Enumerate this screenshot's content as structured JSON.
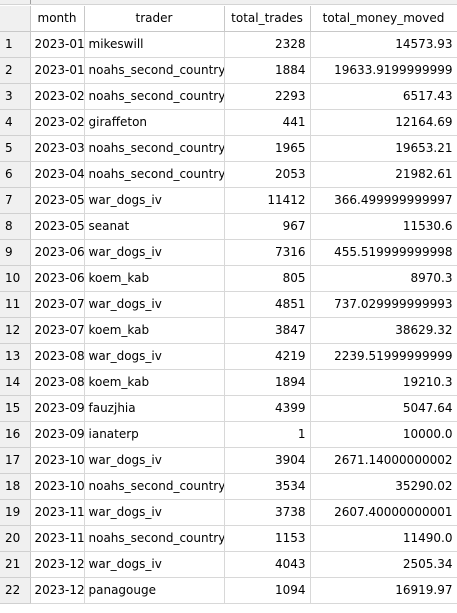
{
  "columns": [
    "month",
    "trader",
    "total_trades",
    "total_money_moved"
  ],
  "rows": [
    {
      "num": "1",
      "month": "2023-01",
      "trader": "mikeswill",
      "total_trades": "2328",
      "total_money_moved": "14573.93"
    },
    {
      "num": "2",
      "month": "2023-01",
      "trader": "noahs_second_country",
      "total_trades": "1884",
      "total_money_moved": "19633.9199999999"
    },
    {
      "num": "3",
      "month": "2023-02",
      "trader": "noahs_second_country",
      "total_trades": "2293",
      "total_money_moved": "6517.43"
    },
    {
      "num": "4",
      "month": "2023-02",
      "trader": "giraffeton",
      "total_trades": "441",
      "total_money_moved": "12164.69"
    },
    {
      "num": "5",
      "month": "2023-03",
      "trader": "noahs_second_country",
      "total_trades": "1965",
      "total_money_moved": "19653.21"
    },
    {
      "num": "6",
      "month": "2023-04",
      "trader": "noahs_second_country",
      "total_trades": "2053",
      "total_money_moved": "21982.61"
    },
    {
      "num": "7",
      "month": "2023-05",
      "trader": "war_dogs_iv",
      "total_trades": "11412",
      "total_money_moved": "366.499999999997"
    },
    {
      "num": "8",
      "month": "2023-05",
      "trader": "seanat",
      "total_trades": "967",
      "total_money_moved": "11530.6"
    },
    {
      "num": "9",
      "month": "2023-06",
      "trader": "war_dogs_iv",
      "total_trades": "7316",
      "total_money_moved": "455.519999999998"
    },
    {
      "num": "10",
      "month": "2023-06",
      "trader": "koem_kab",
      "total_trades": "805",
      "total_money_moved": "8970.3"
    },
    {
      "num": "11",
      "month": "2023-07",
      "trader": "war_dogs_iv",
      "total_trades": "4851",
      "total_money_moved": "737.029999999993"
    },
    {
      "num": "12",
      "month": "2023-07",
      "trader": "koem_kab",
      "total_trades": "3847",
      "total_money_moved": "38629.32"
    },
    {
      "num": "13",
      "month": "2023-08",
      "trader": "war_dogs_iv",
      "total_trades": "4219",
      "total_money_moved": "2239.51999999999"
    },
    {
      "num": "14",
      "month": "2023-08",
      "trader": "koem_kab",
      "total_trades": "1894",
      "total_money_moved": "19210.3"
    },
    {
      "num": "15",
      "month": "2023-09",
      "trader": "fauzjhia",
      "total_trades": "4399",
      "total_money_moved": "5047.64"
    },
    {
      "num": "16",
      "month": "2023-09",
      "trader": "ianaterp",
      "total_trades": "1",
      "total_money_moved": "10000.0"
    },
    {
      "num": "17",
      "month": "2023-10",
      "trader": "war_dogs_iv",
      "total_trades": "3904",
      "total_money_moved": "2671.14000000002"
    },
    {
      "num": "18",
      "month": "2023-10",
      "trader": "noahs_second_country",
      "total_trades": "3534",
      "total_money_moved": "35290.02"
    },
    {
      "num": "19",
      "month": "2023-11",
      "trader": "war_dogs_iv",
      "total_trades": "3738",
      "total_money_moved": "2607.40000000001"
    },
    {
      "num": "20",
      "month": "2023-11",
      "trader": "noahs_second_country",
      "total_trades": "1153",
      "total_money_moved": "11490.0"
    },
    {
      "num": "21",
      "month": "2023-12",
      "trader": "war_dogs_iv",
      "total_trades": "4043",
      "total_money_moved": "2505.34"
    },
    {
      "num": "22",
      "month": "2023-12",
      "trader": "panagouge",
      "total_trades": "1094",
      "total_money_moved": "16919.97"
    }
  ]
}
